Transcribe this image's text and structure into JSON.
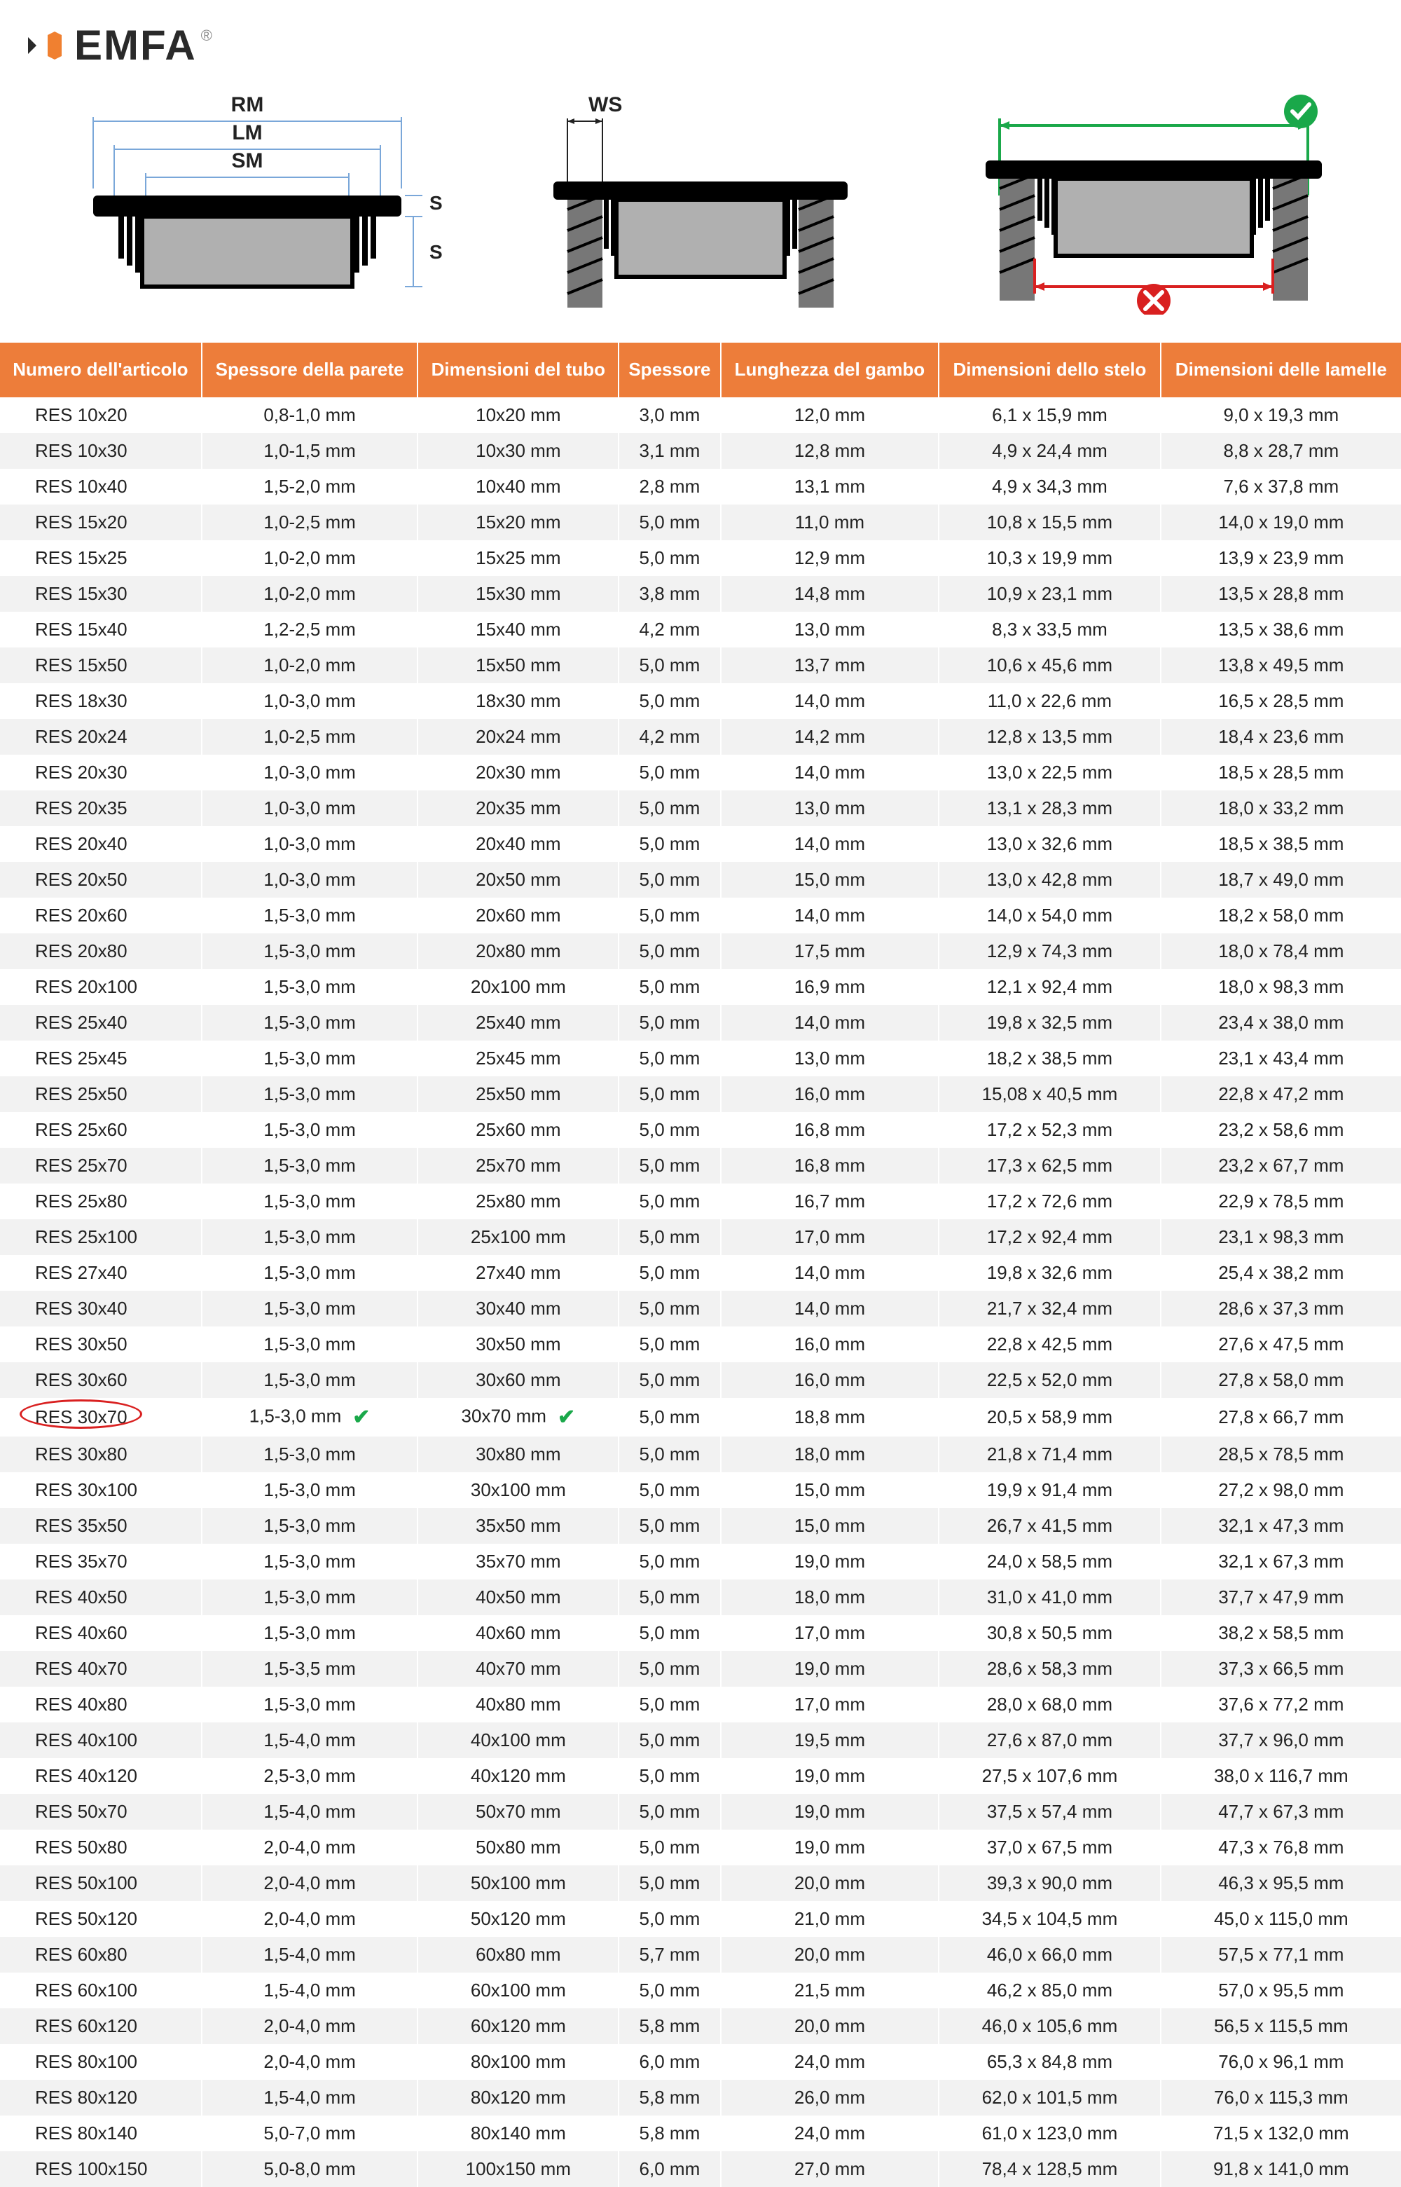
{
  "brand": "EMFA",
  "diagram_labels": {
    "RM": "RM",
    "LM": "LM",
    "SM": "SM",
    "SK": "SK",
    "SE": "SE",
    "WS": "WS"
  },
  "colors": {
    "header_bg": "#ed7d3a",
    "header_text": "#ffffff",
    "row_even": "#f2f2f2",
    "row_odd": "#ffffff",
    "highlight_ring": "#d92020",
    "check_green": "#1aa84a",
    "logo_orange": "#f08030",
    "logo_dark": "#2a2a2a"
  },
  "table": {
    "columns": [
      "Numero dell'articolo",
      "Spessore della parete",
      "Dimensioni del tubo",
      "Spessore",
      "Lunghezza del gambo",
      "Dimensioni dello stelo",
      "Dimensioni delle lamelle"
    ],
    "highlight_row_index": 27,
    "rows": [
      [
        "RES 10x20",
        "0,8-1,0 mm",
        "10x20 mm",
        "3,0 mm",
        "12,0 mm",
        "6,1 x 15,9 mm",
        "9,0 x 19,3 mm"
      ],
      [
        "RES 10x30",
        "1,0-1,5 mm",
        "10x30 mm",
        "3,1 mm",
        "12,8 mm",
        "4,9 x 24,4 mm",
        "8,8 x 28,7 mm"
      ],
      [
        "RES 10x40",
        "1,5-2,0 mm",
        "10x40 mm",
        "2,8 mm",
        "13,1 mm",
        "4,9 x 34,3 mm",
        "7,6 x 37,8 mm"
      ],
      [
        "RES 15x20",
        "1,0-2,5 mm",
        "15x20 mm",
        "5,0 mm",
        "11,0 mm",
        "10,8 x 15,5 mm",
        "14,0 x 19,0 mm"
      ],
      [
        "RES 15x25",
        "1,0-2,0 mm",
        "15x25 mm",
        "5,0 mm",
        "12,9 mm",
        "10,3 x 19,9 mm",
        "13,9 x 23,9 mm"
      ],
      [
        "RES 15x30",
        "1,0-2,0 mm",
        "15x30 mm",
        "3,8 mm",
        "14,8 mm",
        "10,9 x 23,1 mm",
        "13,5 x 28,8 mm"
      ],
      [
        "RES 15x40",
        "1,2-2,5 mm",
        "15x40 mm",
        "4,2 mm",
        "13,0 mm",
        "8,3 x 33,5 mm",
        "13,5 x 38,6 mm"
      ],
      [
        "RES 15x50",
        "1,0-2,0 mm",
        "15x50 mm",
        "5,0 mm",
        "13,7 mm",
        "10,6 x 45,6 mm",
        "13,8 x 49,5 mm"
      ],
      [
        "RES 18x30",
        "1,0-3,0 mm",
        "18x30 mm",
        "5,0 mm",
        "14,0 mm",
        "11,0 x 22,6 mm",
        "16,5 x 28,5 mm"
      ],
      [
        "RES 20x24",
        "1,0-2,5 mm",
        "20x24 mm",
        "4,2 mm",
        "14,2 mm",
        "12,8 x 13,5 mm",
        "18,4 x 23,6 mm"
      ],
      [
        "RES 20x30",
        "1,0-3,0 mm",
        "20x30 mm",
        "5,0 mm",
        "14,0 mm",
        "13,0 x 22,5 mm",
        "18,5 x 28,5 mm"
      ],
      [
        "RES 20x35",
        "1,0-3,0 mm",
        "20x35 mm",
        "5,0 mm",
        "13,0 mm",
        "13,1 x 28,3 mm",
        "18,0 x 33,2 mm"
      ],
      [
        "RES 20x40",
        "1,0-3,0 mm",
        "20x40 mm",
        "5,0 mm",
        "14,0 mm",
        "13,0 x 32,6 mm",
        "18,5 x 38,5 mm"
      ],
      [
        "RES 20x50",
        "1,0-3,0 mm",
        "20x50 mm",
        "5,0 mm",
        "15,0 mm",
        "13,0 x 42,8 mm",
        "18,7 x 49,0 mm"
      ],
      [
        "RES 20x60",
        "1,5-3,0 mm",
        "20x60 mm",
        "5,0 mm",
        "14,0 mm",
        "14,0 x 54,0 mm",
        "18,2 x 58,0 mm"
      ],
      [
        "RES 20x80",
        "1,5-3,0 mm",
        "20x80 mm",
        "5,0 mm",
        "17,5 mm",
        "12,9 x 74,3 mm",
        "18,0 x 78,4 mm"
      ],
      [
        "RES 20x100",
        "1,5-3,0 mm",
        "20x100 mm",
        "5,0 mm",
        "16,9 mm",
        "12,1 x 92,4 mm",
        "18,0 x 98,3 mm"
      ],
      [
        "RES 25x40",
        "1,5-3,0 mm",
        "25x40 mm",
        "5,0 mm",
        "14,0 mm",
        "19,8 x 32,5 mm",
        "23,4 x 38,0 mm"
      ],
      [
        "RES 25x45",
        "1,5-3,0 mm",
        "25x45 mm",
        "5,0 mm",
        "13,0 mm",
        "18,2 x 38,5 mm",
        "23,1 x 43,4 mm"
      ],
      [
        "RES 25x50",
        "1,5-3,0 mm",
        "25x50 mm",
        "5,0 mm",
        "16,0 mm",
        "15,08 x 40,5 mm",
        "22,8 x 47,2 mm"
      ],
      [
        "RES 25x60",
        "1,5-3,0 mm",
        "25x60 mm",
        "5,0 mm",
        "16,8 mm",
        "17,2 x 52,3 mm",
        "23,2 x 58,6 mm"
      ],
      [
        "RES 25x70",
        "1,5-3,0 mm",
        "25x70 mm",
        "5,0 mm",
        "16,8 mm",
        "17,3 x 62,5 mm",
        "23,2 x 67,7 mm"
      ],
      [
        "RES 25x80",
        "1,5-3,0 mm",
        "25x80 mm",
        "5,0 mm",
        "16,7 mm",
        "17,2 x 72,6 mm",
        "22,9 x 78,5 mm"
      ],
      [
        "RES 25x100",
        "1,5-3,0 mm",
        "25x100 mm",
        "5,0 mm",
        "17,0 mm",
        "17,2 x 92,4 mm",
        "23,1 x 98,3 mm"
      ],
      [
        "RES 27x40",
        "1,5-3,0 mm",
        "27x40 mm",
        "5,0 mm",
        "14,0 mm",
        "19,8 x 32,6 mm",
        "25,4 x 38,2 mm"
      ],
      [
        "RES 30x40",
        "1,5-3,0 mm",
        "30x40 mm",
        "5,0 mm",
        "14,0 mm",
        "21,7 x 32,4 mm",
        "28,6 x 37,3 mm"
      ],
      [
        "RES 30x50",
        "1,5-3,0 mm",
        "30x50 mm",
        "5,0 mm",
        "16,0 mm",
        "22,8 x 42,5 mm",
        "27,6 x 47,5 mm"
      ],
      [
        "RES 30x60",
        "1,5-3,0 mm",
        "30x60 mm",
        "5,0 mm",
        "16,0 mm",
        "22,5 x 52,0 mm",
        "27,8 x 58,0 mm"
      ],
      [
        "RES 30x70",
        "1,5-3,0 mm",
        "30x70 mm",
        "5,0 mm",
        "18,8 mm",
        "20,5 x 58,9 mm",
        "27,8 x 66,7 mm"
      ],
      [
        "RES 30x80",
        "1,5-3,0 mm",
        "30x80 mm",
        "5,0 mm",
        "18,0 mm",
        "21,8 x 71,4 mm",
        "28,5 x 78,5 mm"
      ],
      [
        "RES 30x100",
        "1,5-3,0 mm",
        "30x100 mm",
        "5,0 mm",
        "15,0 mm",
        "19,9 x 91,4 mm",
        "27,2 x 98,0 mm"
      ],
      [
        "RES 35x50",
        "1,5-3,0 mm",
        "35x50 mm",
        "5,0 mm",
        "15,0 mm",
        "26,7 x 41,5 mm",
        "32,1 x 47,3 mm"
      ],
      [
        "RES 35x70",
        "1,5-3,0 mm",
        "35x70 mm",
        "5,0 mm",
        "19,0 mm",
        "24,0 x 58,5 mm",
        "32,1 x 67,3 mm"
      ],
      [
        "RES 40x50",
        "1,5-3,0 mm",
        "40x50 mm",
        "5,0 mm",
        "18,0 mm",
        "31,0 x 41,0 mm",
        "37,7 x 47,9 mm"
      ],
      [
        "RES 40x60",
        "1,5-3,0 mm",
        "40x60 mm",
        "5,0 mm",
        "17,0 mm",
        "30,8 x 50,5 mm",
        "38,2 x 58,5 mm"
      ],
      [
        "RES 40x70",
        "1,5-3,5 mm",
        "40x70 mm",
        "5,0 mm",
        "19,0 mm",
        "28,6 x 58,3 mm",
        "37,3 x 66,5 mm"
      ],
      [
        "RES 40x80",
        "1,5-3,0 mm",
        "40x80 mm",
        "5,0 mm",
        "17,0 mm",
        "28,0 x 68,0 mm",
        "37,6 x 77,2 mm"
      ],
      [
        "RES 40x100",
        "1,5-4,0 mm",
        "40x100 mm",
        "5,0 mm",
        "19,5 mm",
        "27,6 x 87,0 mm",
        "37,7 x 96,0 mm"
      ],
      [
        "RES 40x120",
        "2,5-3,0 mm",
        "40x120 mm",
        "5,0 mm",
        "19,0 mm",
        "27,5 x 107,6 mm",
        "38,0 x 116,7 mm"
      ],
      [
        "RES 50x70",
        "1,5-4,0 mm",
        "50x70 mm",
        "5,0 mm",
        "19,0 mm",
        "37,5 x 57,4 mm",
        "47,7 x 67,3 mm"
      ],
      [
        "RES 50x80",
        "2,0-4,0 mm",
        "50x80 mm",
        "5,0 mm",
        "19,0 mm",
        "37,0 x 67,5 mm",
        "47,3 x 76,8 mm"
      ],
      [
        "RES 50x100",
        "2,0-4,0 mm",
        "50x100 mm",
        "5,0 mm",
        "20,0 mm",
        "39,3 x 90,0 mm",
        "46,3 x 95,5 mm"
      ],
      [
        "RES 50x120",
        "2,0-4,0 mm",
        "50x120 mm",
        "5,0 mm",
        "21,0 mm",
        "34,5 x 104,5 mm",
        "45,0 x 115,0 mm"
      ],
      [
        "RES 60x80",
        "1,5-4,0 mm",
        "60x80 mm",
        "5,7 mm",
        "20,0 mm",
        "46,0 x 66,0 mm",
        "57,5 x 77,1 mm"
      ],
      [
        "RES 60x100",
        "1,5-4,0 mm",
        "60x100 mm",
        "5,0 mm",
        "21,5 mm",
        "46,2 x 85,0 mm",
        "57,0 x 95,5 mm"
      ],
      [
        "RES 60x120",
        "2,0-4,0 mm",
        "60x120 mm",
        "5,8 mm",
        "20,0 mm",
        "46,0 x 105,6 mm",
        "56,5 x 115,5 mm"
      ],
      [
        "RES 80x100",
        "2,0-4,0 mm",
        "80x100 mm",
        "6,0 mm",
        "24,0 mm",
        "65,3 x 84,8 mm",
        "76,0 x 96,1 mm"
      ],
      [
        "RES 80x120",
        "1,5-4,0 mm",
        "80x120 mm",
        "5,8 mm",
        "26,0 mm",
        "62,0 x 101,5 mm",
        "76,0 x 115,3 mm"
      ],
      [
        "RES 80x140",
        "5,0-7,0 mm",
        "80x140 mm",
        "5,8 mm",
        "24,0 mm",
        "61,0 x 123,0 mm",
        "71,5 x 132,0 mm"
      ],
      [
        "RES 100x150",
        "5,0-8,0 mm",
        "100x150 mm",
        "6,0 mm",
        "27,0 mm",
        "78,4 x 128,5 mm",
        "91,8 x 141,0 mm"
      ]
    ]
  }
}
